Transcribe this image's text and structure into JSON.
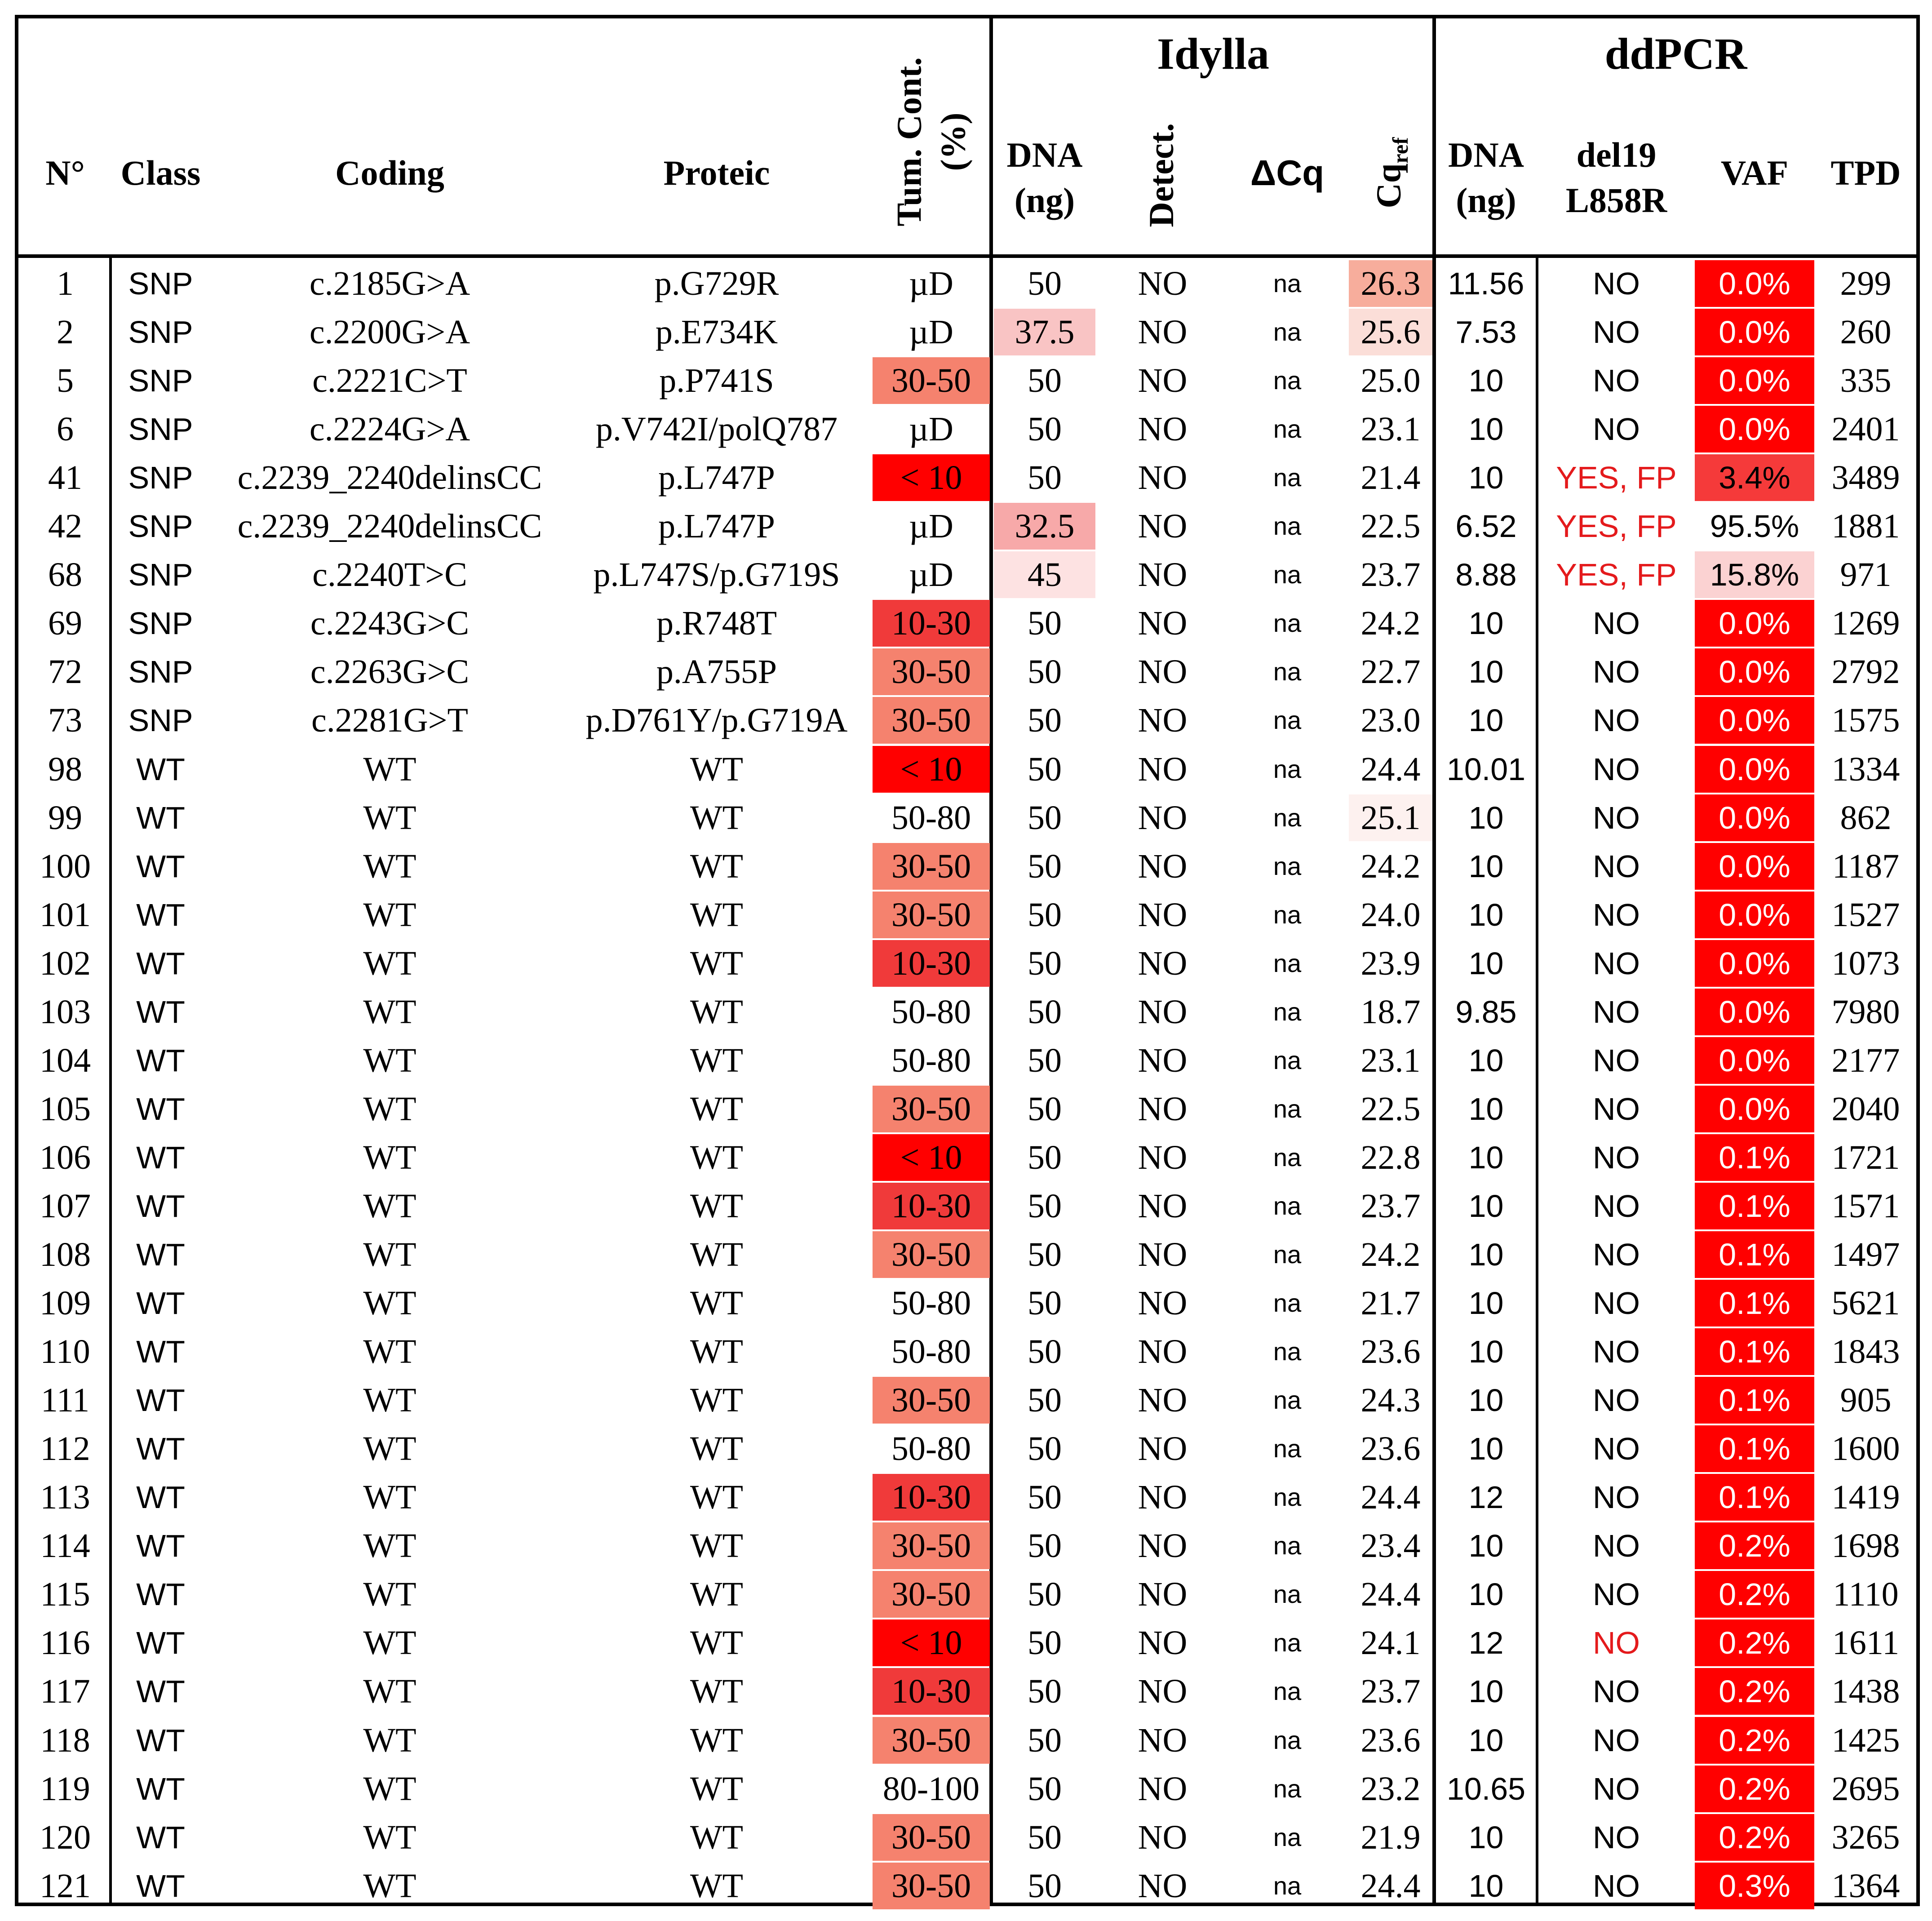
{
  "header": {
    "groups": [
      {
        "id": "idylla",
        "label": "Idylla"
      },
      {
        "id": "ddpcr",
        "label": "ddPCR"
      }
    ],
    "columns": {
      "n": "N°",
      "class": "Class",
      "coding": "Coding",
      "proteic": "Proteic",
      "tum_line1": "Tum. Cont.",
      "tum_line2": "(%)",
      "idylla_dna_line1": "DNA",
      "idylla_dna_line2": "(ng)",
      "detect": "Detect.",
      "dcq": "ΔCq",
      "cqref_main": "Cq",
      "cqref_sub": "ref",
      "ddpcr_dna_line1": "DNA",
      "ddpcr_dna_line2": "(ng)",
      "del19_line1": "del19",
      "del19_line2": "L858R",
      "vaf": "VAF",
      "tpd": "TPD"
    }
  },
  "colors": {
    "tum_lt10": "#ff0000",
    "tum_10_30": "#f03a3a",
    "tum_30_50": "#f5826e",
    "vaf_red": "#ff0000",
    "vaf_3_4": "#f53a3a",
    "vaf_15_8": "#fbd2d2",
    "dna_32_5": "#f7a9a9",
    "dna_37_5": "#f9c4c4",
    "dna_45": "#fde2e2",
    "cq_26_3": "#f7ad9c",
    "cq_25_6": "#fbded8",
    "cq_25_1": "#fdf1ef",
    "fp_text": "#e41a1c"
  },
  "rows": [
    {
      "n": "1",
      "class": "SNP",
      "coding": "c.2185G>A",
      "proteic": "p.G729R",
      "tum": "µD",
      "dna": "50",
      "detect": "NO",
      "dcq": "na",
      "cqref": "26.3",
      "ddna": "11.56",
      "del19": "NO",
      "vaf": "0.0%",
      "tpd": "299"
    },
    {
      "n": "2",
      "class": "SNP",
      "coding": "c.2200G>A",
      "proteic": "p.E734K",
      "tum": "µD",
      "dna": "37.5",
      "detect": "NO",
      "dcq": "na",
      "cqref": "25.6",
      "ddna": "7.53",
      "del19": "NO",
      "vaf": "0.0%",
      "tpd": "260"
    },
    {
      "n": "5",
      "class": "SNP",
      "coding": "c.2221C>T",
      "proteic": "p.P741S",
      "tum": "30-50",
      "dna": "50",
      "detect": "NO",
      "dcq": "na",
      "cqref": "25.0",
      "ddna": "10",
      "del19": "NO",
      "vaf": "0.0%",
      "tpd": "335"
    },
    {
      "n": "6",
      "class": "SNP",
      "coding": "c.2224G>A",
      "proteic": "p.V742I/polQ787",
      "tum": "µD",
      "dna": "50",
      "detect": "NO",
      "dcq": "na",
      "cqref": "23.1",
      "ddna": "10",
      "del19": "NO",
      "vaf": "0.0%",
      "tpd": "2401"
    },
    {
      "n": "41",
      "class": "SNP",
      "coding": "c.2239_2240delinsCC",
      "proteic": "p.L747P",
      "tum": "< 10",
      "dna": "50",
      "detect": "NO",
      "dcq": "na",
      "cqref": "21.4",
      "ddna": "10",
      "del19": "YES, FP",
      "vaf": "3.4%",
      "tpd": "3489"
    },
    {
      "n": "42",
      "class": "SNP",
      "coding": "c.2239_2240delinsCC",
      "proteic": "p.L747P",
      "tum": "µD",
      "dna": "32.5",
      "detect": "NO",
      "dcq": "na",
      "cqref": "22.5",
      "ddna": "6.52",
      "del19": "YES, FP",
      "vaf": "95.5%",
      "tpd": "1881"
    },
    {
      "n": "68",
      "class": "SNP",
      "coding": "c.2240T>C",
      "proteic": "p.L747S/p.G719S",
      "tum": "µD",
      "dna": "45",
      "detect": "NO",
      "dcq": "na",
      "cqref": "23.7",
      "ddna": "8.88",
      "del19": "YES, FP",
      "vaf": "15.8%",
      "tpd": "971"
    },
    {
      "n": "69",
      "class": "SNP",
      "coding": "c.2243G>C",
      "proteic": "p.R748T",
      "tum": "10-30",
      "dna": "50",
      "detect": "NO",
      "dcq": "na",
      "cqref": "24.2",
      "ddna": "10",
      "del19": "NO",
      "vaf": "0.0%",
      "tpd": "1269"
    },
    {
      "n": "72",
      "class": "SNP",
      "coding": "c.2263G>C",
      "proteic": "p.A755P",
      "tum": "30-50",
      "dna": "50",
      "detect": "NO",
      "dcq": "na",
      "cqref": "22.7",
      "ddna": "10",
      "del19": "NO",
      "vaf": "0.0%",
      "tpd": "2792"
    },
    {
      "n": "73",
      "class": "SNP",
      "coding": "c.2281G>T",
      "proteic": "p.D761Y/p.G719A",
      "tum": "30-50",
      "dna": "50",
      "detect": "NO",
      "dcq": "na",
      "cqref": "23.0",
      "ddna": "10",
      "del19": "NO",
      "vaf": "0.0%",
      "tpd": "1575"
    },
    {
      "n": "98",
      "class": "WT",
      "coding": "WT",
      "proteic": "WT",
      "tum": "< 10",
      "dna": "50",
      "detect": "NO",
      "dcq": "na",
      "cqref": "24.4",
      "ddna": "10.01",
      "del19": "NO",
      "vaf": "0.0%",
      "tpd": "1334"
    },
    {
      "n": "99",
      "class": "WT",
      "coding": "WT",
      "proteic": "WT",
      "tum": "50-80",
      "dna": "50",
      "detect": "NO",
      "dcq": "na",
      "cqref": "25.1",
      "ddna": "10",
      "del19": "NO",
      "vaf": "0.0%",
      "tpd": "862"
    },
    {
      "n": "100",
      "class": "WT",
      "coding": "WT",
      "proteic": "WT",
      "tum": "30-50",
      "dna": "50",
      "detect": "NO",
      "dcq": "na",
      "cqref": "24.2",
      "ddna": "10",
      "del19": "NO",
      "vaf": "0.0%",
      "tpd": "1187"
    },
    {
      "n": "101",
      "class": "WT",
      "coding": "WT",
      "proteic": "WT",
      "tum": "30-50",
      "dna": "50",
      "detect": "NO",
      "dcq": "na",
      "cqref": "24.0",
      "ddna": "10",
      "del19": "NO",
      "vaf": "0.0%",
      "tpd": "1527"
    },
    {
      "n": "102",
      "class": "WT",
      "coding": "WT",
      "proteic": "WT",
      "tum": "10-30",
      "dna": "50",
      "detect": "NO",
      "dcq": "na",
      "cqref": "23.9",
      "ddna": "10",
      "del19": "NO",
      "vaf": "0.0%",
      "tpd": "1073"
    },
    {
      "n": "103",
      "class": "WT",
      "coding": "WT",
      "proteic": "WT",
      "tum": "50-80",
      "dna": "50",
      "detect": "NO",
      "dcq": "na",
      "cqref": "18.7",
      "ddna": "9.85",
      "del19": "NO",
      "vaf": "0.0%",
      "tpd": "7980"
    },
    {
      "n": "104",
      "class": "WT",
      "coding": "WT",
      "proteic": "WT",
      "tum": "50-80",
      "dna": "50",
      "detect": "NO",
      "dcq": "na",
      "cqref": "23.1",
      "ddna": "10",
      "del19": "NO",
      "vaf": "0.0%",
      "tpd": "2177"
    },
    {
      "n": "105",
      "class": "WT",
      "coding": "WT",
      "proteic": "WT",
      "tum": "30-50",
      "dna": "50",
      "detect": "NO",
      "dcq": "na",
      "cqref": "22.5",
      "ddna": "10",
      "del19": "NO",
      "vaf": "0.0%",
      "tpd": "2040"
    },
    {
      "n": "106",
      "class": "WT",
      "coding": "WT",
      "proteic": "WT",
      "tum": "< 10",
      "dna": "50",
      "detect": "NO",
      "dcq": "na",
      "cqref": "22.8",
      "ddna": "10",
      "del19": "NO",
      "vaf": "0.1%",
      "tpd": "1721"
    },
    {
      "n": "107",
      "class": "WT",
      "coding": "WT",
      "proteic": "WT",
      "tum": "10-30",
      "dna": "50",
      "detect": "NO",
      "dcq": "na",
      "cqref": "23.7",
      "ddna": "10",
      "del19": "NO",
      "vaf": "0.1%",
      "tpd": "1571"
    },
    {
      "n": "108",
      "class": "WT",
      "coding": "WT",
      "proteic": "WT",
      "tum": "30-50",
      "dna": "50",
      "detect": "NO",
      "dcq": "na",
      "cqref": "24.2",
      "ddna": "10",
      "del19": "NO",
      "vaf": "0.1%",
      "tpd": "1497"
    },
    {
      "n": "109",
      "class": "WT",
      "coding": "WT",
      "proteic": "WT",
      "tum": "50-80",
      "dna": "50",
      "detect": "NO",
      "dcq": "na",
      "cqref": "21.7",
      "ddna": "10",
      "del19": "NO",
      "vaf": "0.1%",
      "tpd": "5621"
    },
    {
      "n": "110",
      "class": "WT",
      "coding": "WT",
      "proteic": "WT",
      "tum": "50-80",
      "dna": "50",
      "detect": "NO",
      "dcq": "na",
      "cqref": "23.6",
      "ddna": "10",
      "del19": "NO",
      "vaf": "0.1%",
      "tpd": "1843"
    },
    {
      "n": "111",
      "class": "WT",
      "coding": "WT",
      "proteic": "WT",
      "tum": "30-50",
      "dna": "50",
      "detect": "NO",
      "dcq": "na",
      "cqref": "24.3",
      "ddna": "10",
      "del19": "NO",
      "vaf": "0.1%",
      "tpd": "905"
    },
    {
      "n": "112",
      "class": "WT",
      "coding": "WT",
      "proteic": "WT",
      "tum": "50-80",
      "dna": "50",
      "detect": "NO",
      "dcq": "na",
      "cqref": "23.6",
      "ddna": "10",
      "del19": "NO",
      "vaf": "0.1%",
      "tpd": "1600"
    },
    {
      "n": "113",
      "class": "WT",
      "coding": "WT",
      "proteic": "WT",
      "tum": "10-30",
      "dna": "50",
      "detect": "NO",
      "dcq": "na",
      "cqref": "24.4",
      "ddna": "12",
      "del19": "NO",
      "vaf": "0.1%",
      "tpd": "1419"
    },
    {
      "n": "114",
      "class": "WT",
      "coding": "WT",
      "proteic": "WT",
      "tum": "30-50",
      "dna": "50",
      "detect": "NO",
      "dcq": "na",
      "cqref": "23.4",
      "ddna": "10",
      "del19": "NO",
      "vaf": "0.2%",
      "tpd": "1698"
    },
    {
      "n": "115",
      "class": "WT",
      "coding": "WT",
      "proteic": "WT",
      "tum": "30-50",
      "dna": "50",
      "detect": "NO",
      "dcq": "na",
      "cqref": "24.4",
      "ddna": "10",
      "del19": "NO",
      "vaf": "0.2%",
      "tpd": "1110"
    },
    {
      "n": "116",
      "class": "WT",
      "coding": "WT",
      "proteic": "WT",
      "tum": "< 10",
      "dna": "50",
      "detect": "NO",
      "dcq": "na",
      "cqref": "24.1",
      "ddna": "12",
      "del19": "NO",
      "vaf": "0.2%",
      "tpd": "1611"
    },
    {
      "n": "117",
      "class": "WT",
      "coding": "WT",
      "proteic": "WT",
      "tum": "10-30",
      "dna": "50",
      "detect": "NO",
      "dcq": "na",
      "cqref": "23.7",
      "ddna": "10",
      "del19": "NO",
      "vaf": "0.2%",
      "tpd": "1438"
    },
    {
      "n": "118",
      "class": "WT",
      "coding": "WT",
      "proteic": "WT",
      "tum": "30-50",
      "dna": "50",
      "detect": "NO",
      "dcq": "na",
      "cqref": "23.6",
      "ddna": "10",
      "del19": "NO",
      "vaf": "0.2%",
      "tpd": "1425"
    },
    {
      "n": "119",
      "class": "WT",
      "coding": "WT",
      "proteic": "WT",
      "tum": "80-100",
      "dna": "50",
      "detect": "NO",
      "dcq": "na",
      "cqref": "23.2",
      "ddna": "10.65",
      "del19": "NO",
      "vaf": "0.2%",
      "tpd": "2695"
    },
    {
      "n": "120",
      "class": "WT",
      "coding": "WT",
      "proteic": "WT",
      "tum": "30-50",
      "dna": "50",
      "detect": "NO",
      "dcq": "na",
      "cqref": "21.9",
      "ddna": "10",
      "del19": "NO",
      "vaf": "0.2%",
      "tpd": "3265"
    },
    {
      "n": "121",
      "class": "WT",
      "coding": "WT",
      "proteic": "WT",
      "tum": "30-50",
      "dna": "50",
      "detect": "NO",
      "dcq": "na",
      "cqref": "24.4",
      "ddna": "10",
      "del19": "NO",
      "vaf": "0.3%",
      "tpd": "1364"
    }
  ]
}
